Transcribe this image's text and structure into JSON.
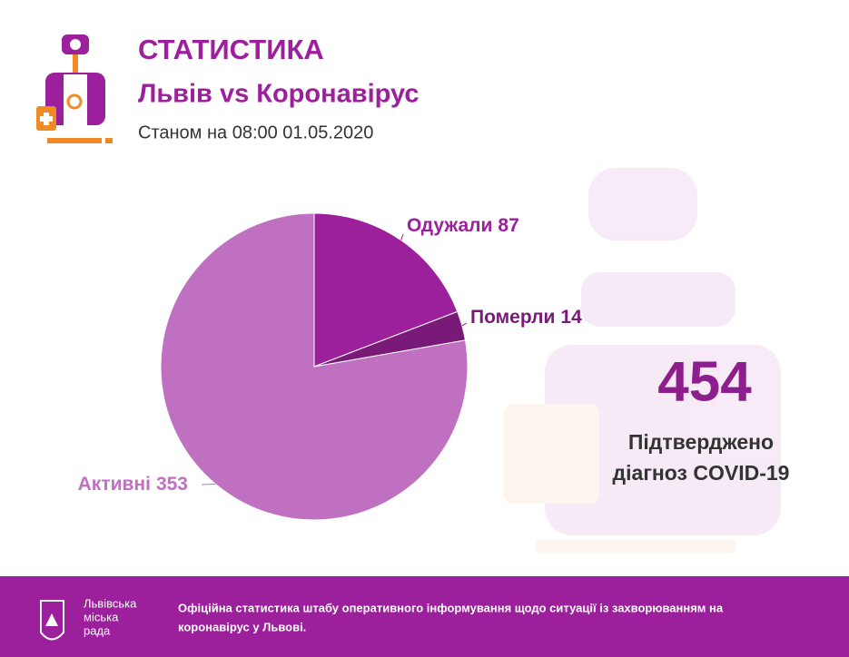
{
  "header": {
    "title": "СТАТИСТИКА",
    "subtitle": "Львів vs Коронавірус",
    "date": "Станом на 08:00 01.05.2020"
  },
  "chart_data": {
    "type": "pie",
    "categories": [
      "Одужали",
      "Померли",
      "Активні"
    ],
    "values": [
      87,
      14,
      353
    ],
    "colors": [
      "#9c1f9c",
      "#7a1a78",
      "#c070c0"
    ]
  },
  "summary": {
    "total": 454,
    "lines": [
      "Підтверджено",
      "діагноз COVID-19"
    ]
  },
  "footer": {
    "logo": [
      "Львівська",
      "міська",
      "рада"
    ],
    "lines": [
      "Офіційна статистика штабу оперативного інформування щодо ситуації із захворюванням на",
      "коронавірус у Львові."
    ]
  }
}
